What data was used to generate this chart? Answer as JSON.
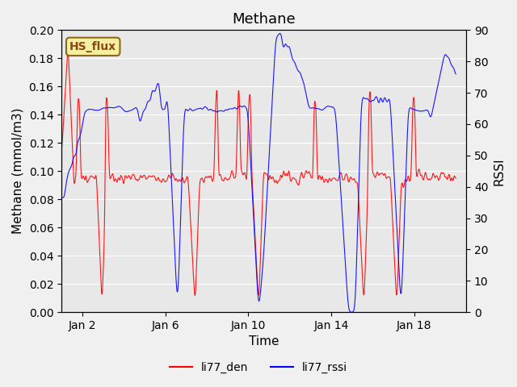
{
  "title": "Methane",
  "xlabel": "Time",
  "ylabel_left": "Methane (mmol/m3)",
  "ylabel_right": "RSSI",
  "ylim_left": [
    0.0,
    0.2
  ],
  "ylim_right": [
    0,
    90
  ],
  "yticks_left": [
    0.0,
    0.02,
    0.04,
    0.06,
    0.08,
    0.1,
    0.12,
    0.14,
    0.16,
    0.18,
    0.2
  ],
  "yticks_right": [
    0,
    10,
    20,
    30,
    40,
    50,
    60,
    70,
    80,
    90
  ],
  "xtick_labels": [
    "Jan 2",
    "Jan 6",
    "Jan 10",
    "Jan 14",
    "Jan 18"
  ],
  "xtick_positions": [
    1,
    5,
    9,
    13,
    17
  ],
  "xlim": [
    0,
    19.5
  ],
  "legend_labels": [
    "li77_den",
    "li77_rssi"
  ],
  "legend_colors": [
    "red",
    "blue"
  ],
  "box_label": "HS_flux",
  "bg_color": "#e8e8e8",
  "line_color_red": "red",
  "line_color_blue": "blue",
  "title_fontsize": 13,
  "axis_label_fontsize": 11,
  "tick_fontsize": 10
}
